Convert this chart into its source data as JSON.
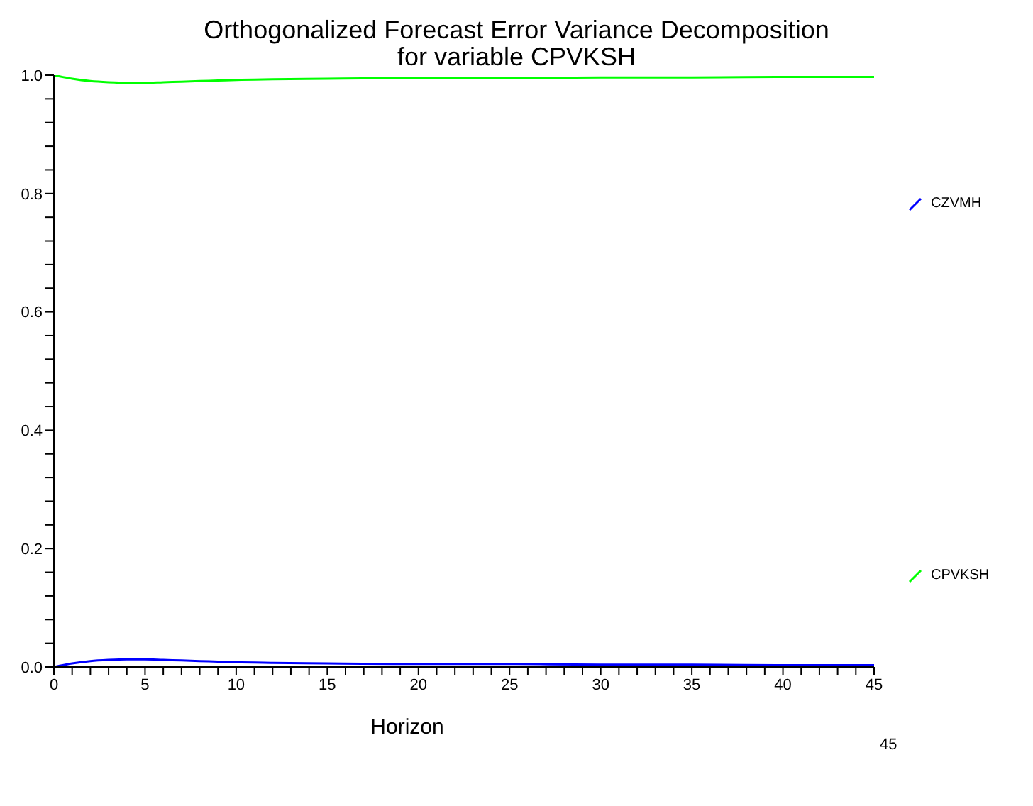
{
  "chart_data": {
    "type": "line",
    "title": "Orthogonalized Forecast Error Variance Decomposition\nfor variable CPVKSH",
    "xlabel": "Horizon",
    "x": [
      0,
      1,
      2,
      3,
      4,
      5,
      6,
      7,
      8,
      9,
      10,
      12,
      15,
      20,
      25,
      30,
      35,
      40,
      45
    ],
    "series": [
      {
        "name": "CZVMH",
        "color": "#0000ff",
        "values": [
          0,
          0.006,
          0.01,
          0.012,
          0.013,
          0.013,
          0.012,
          0.011,
          0.01,
          0.009,
          0.008,
          0.007,
          0.006,
          0.005,
          0.005,
          0.004,
          0.004,
          0.003,
          0.003
        ]
      },
      {
        "name": "CPVKSH",
        "color": "#00ff00",
        "values": [
          1,
          0.994,
          0.99,
          0.988,
          0.987,
          0.987,
          0.988,
          0.989,
          0.99,
          0.991,
          0.992,
          0.993,
          0.994,
          0.995,
          0.995,
          0.996,
          0.996,
          0.997,
          0.997
        ]
      }
    ],
    "xlim": [
      0,
      45
    ],
    "xticks": [
      0,
      {
        "value": 1,
        "label": null
      },
      {
        "value": 2,
        "label": null
      },
      {
        "value": 3,
        "label": null
      },
      {
        "value": 4,
        "label": null
      },
      5,
      {
        "value": 6,
        "label": null
      },
      {
        "value": 7,
        "label": null
      },
      {
        "value": 8,
        "label": null
      },
      {
        "value": 9,
        "label": null
      },
      10,
      {
        "value": 11,
        "label": null
      },
      {
        "value": 12,
        "label": null
      },
      {
        "value": 13,
        "label": null
      },
      {
        "value": 14,
        "label": null
      },
      15,
      {
        "value": 16,
        "label": null
      },
      {
        "value": 17,
        "label": null
      },
      {
        "value": 18,
        "label": null
      },
      {
        "value": 19,
        "label": null
      },
      20,
      {
        "value": 21,
        "label": null
      },
      {
        "value": 22,
        "label": null
      },
      {
        "value": 23,
        "label": null
      },
      {
        "value": 24,
        "label": null
      },
      25,
      {
        "value": 26,
        "label": null
      },
      {
        "value": 27,
        "label": null
      },
      {
        "value": 28,
        "label": null
      },
      {
        "value": 29,
        "label": null
      },
      30,
      {
        "value": 31,
        "label": null
      },
      {
        "value": 32,
        "label": null
      },
      {
        "value": 33,
        "label": null
      },
      {
        "value": 34,
        "label": null
      },
      35,
      {
        "value": 36,
        "label": null
      },
      {
        "value": 37,
        "label": null
      },
      {
        "value": 38,
        "label": null
      },
      {
        "value": 39,
        "label": null
      },
      40,
      {
        "value": 41,
        "label": null
      },
      {
        "value": 42,
        "label": null
      },
      {
        "value": 43,
        "label": null
      },
      {
        "value": 44,
        "label": null
      },
      45
    ],
    "ylim": [
      0,
      1
    ],
    "yticks": [
      {
        "value": 0,
        "label": "0.0"
      },
      {
        "value": 0.04,
        "label": null
      },
      {
        "value": 0.08,
        "label": null
      },
      {
        "value": 0.12,
        "label": null
      },
      {
        "value": 0.16,
        "label": null
      },
      {
        "value": 0.2,
        "label": "0.2"
      },
      {
        "value": 0.24,
        "label": null
      },
      {
        "value": 0.28,
        "label": null
      },
      {
        "value": 0.32,
        "label": null
      },
      {
        "value": 0.36,
        "label": null
      },
      {
        "value": 0.4,
        "label": "0.4"
      },
      {
        "value": 0.44,
        "label": null
      },
      {
        "value": 0.48,
        "label": null
      },
      {
        "value": 0.52,
        "label": null
      },
      {
        "value": 0.56,
        "label": null
      },
      {
        "value": 0.6,
        "label": "0.6"
      },
      {
        "value": 0.64,
        "label": null
      },
      {
        "value": 0.68,
        "label": null
      },
      {
        "value": 0.72,
        "label": null
      },
      {
        "value": 0.76,
        "label": null
      },
      {
        "value": 0.8,
        "label": "0.8"
      },
      {
        "value": 0.84,
        "label": null
      },
      {
        "value": 0.88,
        "label": null
      },
      {
        "value": 0.92,
        "label": null
      },
      {
        "value": 0.96,
        "label": null
      },
      {
        "value": 1,
        "label": "1.0"
      }
    ],
    "annotations": [
      "45"
    ],
    "grid": false,
    "legend": "right",
    "marker": "none",
    "line_style": "solid"
  }
}
